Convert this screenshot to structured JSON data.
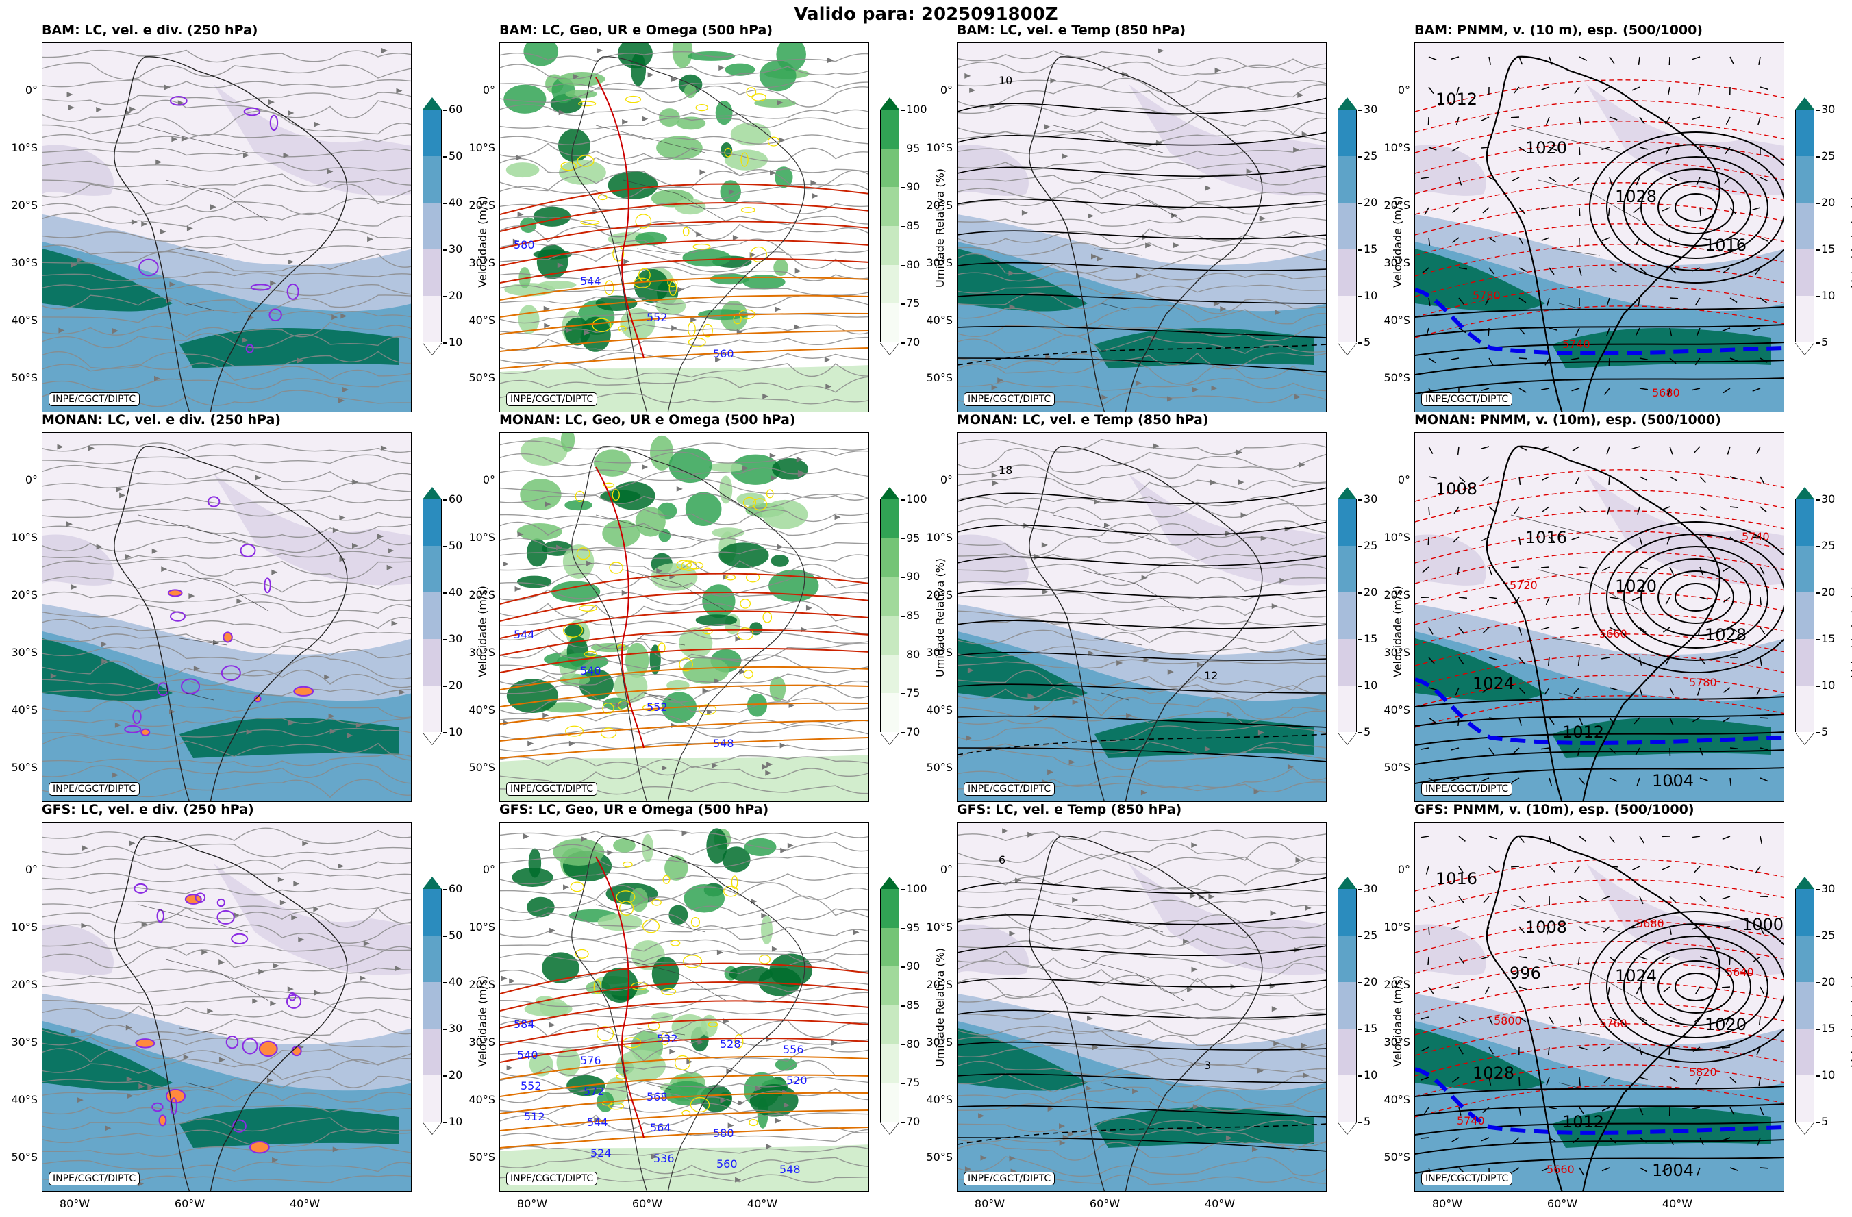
{
  "title": "Valido para: 2025091800Z",
  "credit": "INPE/CGCT/DIPTC",
  "lat_labels": [
    "0°",
    "10°S",
    "20°S",
    "30°S",
    "40°S",
    "50°S"
  ],
  "lon_labels": [
    "80°W",
    "60°W",
    "40°W"
  ],
  "columns": [
    {
      "key": "wind250",
      "cbar_label": "Velocidade (m/s)",
      "ticks": [
        "10",
        "20",
        "30",
        "40",
        "50",
        "60"
      ],
      "colors": [
        "#f3eef6",
        "#d7cfe5",
        "#a7bddb",
        "#5ea3c8",
        "#2b8cbe",
        "#06725d"
      ]
    },
    {
      "key": "rh500",
      "cbar_label": "Umidade Relativa (%)",
      "ticks": [
        "70",
        "75",
        "80",
        "85",
        "90",
        "95",
        "100"
      ],
      "colors": [
        "#f7fcf5",
        "#e5f5e0",
        "#c7e9c0",
        "#a1d99b",
        "#74c476",
        "#31a354",
        "#006d2c"
      ]
    },
    {
      "key": "wind850",
      "cbar_label": "Velocidade (m/s)",
      "ticks": [
        "5",
        "10",
        "15",
        "20",
        "25",
        "30"
      ],
      "colors": [
        "#f3eef6",
        "#d7cfe5",
        "#a7bddb",
        "#5ea3c8",
        "#2b8cbe",
        "#06725d"
      ]
    },
    {
      "key": "pnmm",
      "cbar_label": "Velocidade (m/s)",
      "ticks": [
        "5",
        "10",
        "15",
        "20",
        "25",
        "30"
      ],
      "colors": [
        "#f3eef6",
        "#d7cfe5",
        "#a7bddb",
        "#5ea3c8",
        "#2b8cbe",
        "#06725d"
      ]
    }
  ],
  "rows": [
    {
      "model": "BAM",
      "titles": [
        "BAM: LC, vel. e div. (250 hPa)",
        "BAM: LC, Geo, UR e Omega (500 hPa)",
        "BAM: LC, vel. e Temp (850 hPa)",
        "BAM: PNMM, v. (10 m), esp. (500/1000)"
      ],
      "contour_labels": {
        "geo": [
          "580",
          "544",
          "552",
          "560"
        ],
        "pnmm": [
          "1012",
          "1020",
          "1028",
          "1016",
          "5780",
          "5740",
          "5680"
        ],
        "temp": [
          "10"
        ]
      }
    },
    {
      "model": "MONAN",
      "titles": [
        "MONAN: LC, vel. e div. (250 hPa)",
        "MONAN: LC, Geo, UR e Omega (500 hPa)",
        "MONAN: LC, vel. e Temp (850 hPa)",
        "MONAN: PNMM, v. (10m), esp. (500/1000)"
      ],
      "contour_labels": {
        "geo": [
          "544",
          "540",
          "552",
          "548"
        ],
        "pnmm": [
          "1008",
          "1016",
          "1020",
          "1028",
          "1024",
          "1012",
          "1004",
          "5740",
          "5720",
          "5660",
          "5780"
        ],
        "temp": [
          "18",
          "12"
        ]
      }
    },
    {
      "model": "GFS",
      "titles": [
        "GFS: LC, vel. e div. (250 hPa)",
        "GFS: LC, Geo, UR e Omega (500 hPa)",
        "GFS: LC, vel. e Temp (850 hPa)",
        "GFS: PNMM, v. (10m), esp. (500/1000)"
      ],
      "contour_labels": {
        "geo": [
          "584",
          "576",
          "568",
          "580",
          "548",
          "540",
          "572",
          "564",
          "560",
          "556",
          "552",
          "544",
          "536",
          "528",
          "520",
          "512",
          "524",
          "532"
        ],
        "pnmm": [
          "1016",
          "1008",
          "1024",
          "1020",
          "1028",
          "1012",
          "1004",
          "1000",
          "996",
          "5760",
          "5820",
          "5740",
          "5660",
          "5680",
          "5640",
          "5800"
        ],
        "temp": [
          "6",
          "3"
        ]
      }
    }
  ]
}
